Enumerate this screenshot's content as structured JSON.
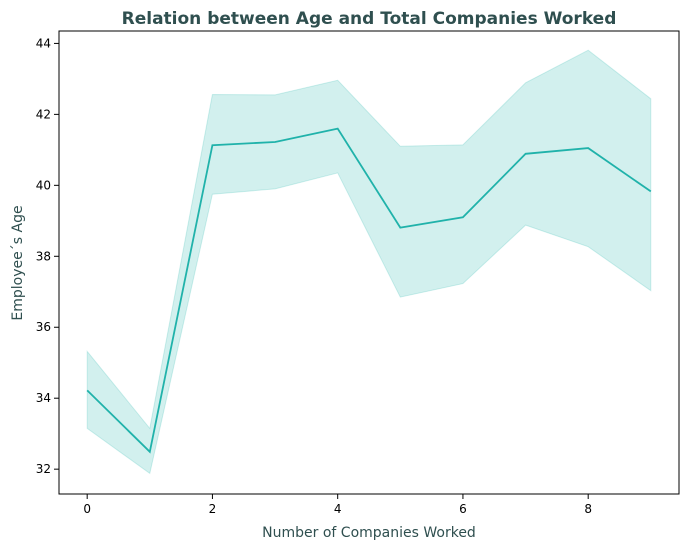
{
  "chart_data": {
    "type": "line",
    "title": "Relation between Age and Total Companies Worked",
    "xlabel": "Number of Companies Worked",
    "ylabel": "Employee´s Age",
    "xlim": [
      -0.45,
      9.45
    ],
    "ylim": [
      31.3,
      44.35
    ],
    "x_ticks": [
      0,
      2,
      4,
      6,
      8
    ],
    "y_ticks": [
      32,
      34,
      36,
      38,
      40,
      42,
      44
    ],
    "grid": false,
    "legend": "none",
    "colors": {
      "line": "#20b2aa",
      "band": "#20b2aa",
      "text": "#2f4f4f"
    },
    "series": [
      {
        "x": [
          0,
          1,
          2,
          3,
          4,
          5,
          6,
          7,
          8,
          9
        ],
        "y": [
          34.22,
          32.49,
          41.13,
          41.22,
          41.6,
          38.81,
          39.1,
          40.89,
          41.05,
          39.83
        ],
        "ci_lower": [
          33.15,
          31.88,
          39.75,
          39.9,
          40.35,
          36.85,
          37.23,
          38.88,
          38.27,
          37.03
        ],
        "ci_upper": [
          35.32,
          33.15,
          42.56,
          42.55,
          42.96,
          41.1,
          41.14,
          42.89,
          43.81,
          42.44
        ]
      }
    ]
  }
}
